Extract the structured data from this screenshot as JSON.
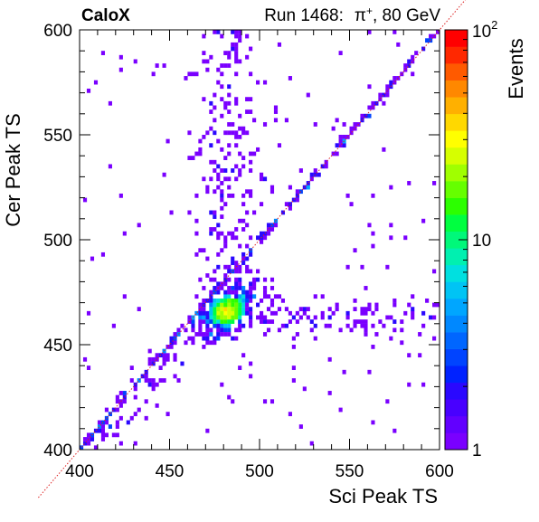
{
  "header": {
    "experiment": "CaloX",
    "run_label": "Run 1468:",
    "particle_symbol": "π",
    "particle_charge": "+",
    "particle_energy": ", 80 GeV"
  },
  "colorbar": {
    "title": "Events",
    "scale": "log",
    "range": [
      1,
      100
    ],
    "tick_labels": [
      {
        "value": 1,
        "base": "1",
        "exp": ""
      },
      {
        "value": 10,
        "base": "10",
        "exp": ""
      },
      {
        "value": 100,
        "base": "10",
        "exp": "2"
      }
    ],
    "palette": [
      "#7a00ff",
      "#6200ff",
      "#4800ff",
      "#2a08ff",
      "#0022ff",
      "#0044ff",
      "#0066ff",
      "#0088ff",
      "#00a6ff",
      "#00c4f4",
      "#00e0e0",
      "#00f0b0",
      "#00f87a",
      "#00ff40",
      "#2cff00",
      "#66ff00",
      "#a0ff00",
      "#d6ff00",
      "#ffff00",
      "#ffd800",
      "#ffb000",
      "#ff8800",
      "#ff5a00",
      "#ff2800",
      "#ff0000"
    ]
  },
  "chart_data": {
    "type": "heatmap",
    "title": "",
    "xlabel": "Sci Peak TS",
    "ylabel": "Cer Peak TS",
    "xlim": [
      400,
      600
    ],
    "ylim": [
      400,
      600
    ],
    "x_ticks": [
      400,
      450,
      500,
      550,
      600
    ],
    "y_ticks": [
      400,
      450,
      500,
      550,
      600
    ],
    "z_scale": "log",
    "z_range": [
      1,
      100
    ],
    "bin_width_ts": 2,
    "diagonal_reference": {
      "from": [
        400,
        400
      ],
      "to": [
        600,
        600
      ],
      "color": "#dd2222",
      "style": "dotted"
    },
    "clusters": [
      {
        "region": "core",
        "x_mean": 482,
        "y_mean": 466,
        "x_sigma": 8,
        "y_sigma": 6,
        "corr": 0.6,
        "count": 420,
        "peak_events": 30
      },
      {
        "region": "vertical-band",
        "x_mean": 483,
        "x_sigma": 10,
        "y_range": [
          470,
          600
        ],
        "count": 210
      },
      {
        "region": "horizontal-band",
        "y_mean": 463,
        "y_sigma": 5,
        "x_range": [
          495,
          600
        ],
        "count": 110
      },
      {
        "region": "diagonal",
        "x_range": [
          400,
          600
        ],
        "y_equals_x_sigma": 1.2,
        "count": 260
      },
      {
        "region": "diagonal-low-shoulder",
        "x_range": [
          400,
          470
        ],
        "y_offset_mean": -8,
        "y_offset_sigma": 5,
        "count": 60
      },
      {
        "region": "background",
        "x_range": [
          400,
          600
        ],
        "y_range": [
          400,
          600
        ],
        "count": 150
      }
    ]
  }
}
